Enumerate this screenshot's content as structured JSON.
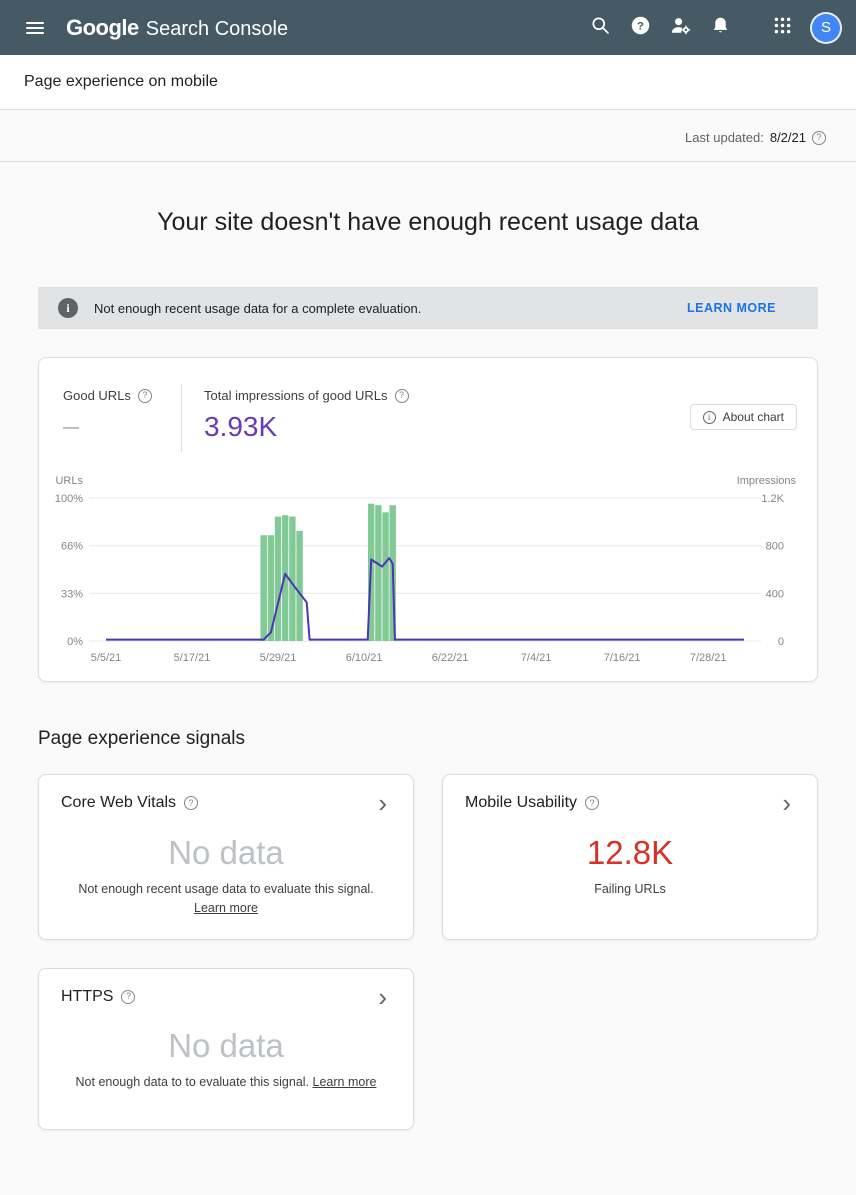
{
  "colors": {
    "header_bg": "#455a64",
    "accent_blue": "#1a73e8",
    "avatar_blue": "#4285f4",
    "value_purple": "#673ab7",
    "line_purple": "#4d35b5",
    "bar_green": "#81c995",
    "value_red": "#d93025",
    "nodata_gray": "#bdc1c6",
    "banner_bg": "#e1e3e4",
    "gridline": "#e8e8e8",
    "tick_text": "#80868b"
  },
  "glyphs": {
    "question": "?",
    "info": "i",
    "chevron": "›"
  },
  "header": {
    "logo_google": "Google",
    "logo_product": "Search Console",
    "avatar_letter": "S"
  },
  "subheader": {
    "title": "Page experience on mobile"
  },
  "meta": {
    "last_updated_label": "Last updated:",
    "last_updated_date": "8/2/21"
  },
  "main": {
    "headline": "Your site doesn't have enough recent usage data",
    "banner": {
      "text": "Not enough recent usage data for a complete evaluation.",
      "action": "LEARN MORE"
    }
  },
  "chart_card": {
    "good_urls_label": "Good URLs",
    "good_urls_value": "—",
    "impressions_label": "Total impressions of good URLs",
    "impressions_value": "3.93K",
    "about_chart": "About chart"
  },
  "chart_data": {
    "type": "bar+line",
    "x_total_days": 89,
    "x_ticks": [
      {
        "day": 0,
        "label": "5/5/21"
      },
      {
        "day": 12,
        "label": "5/17/21"
      },
      {
        "day": 24,
        "label": "5/29/21"
      },
      {
        "day": 36,
        "label": "6/10/21"
      },
      {
        "day": 48,
        "label": "6/22/21"
      },
      {
        "day": 60,
        "label": "7/4/21"
      },
      {
        "day": 72,
        "label": "7/16/21"
      },
      {
        "day": 84,
        "label": "7/28/21"
      }
    ],
    "left_axis": {
      "title": "URLs",
      "tick_labels": [
        "100%",
        "66%",
        "33%",
        "0%"
      ],
      "tick_values": [
        100,
        66.67,
        33.33,
        0
      ]
    },
    "right_axis": {
      "title": "Impressions",
      "tick_labels": [
        "1.2K",
        "800",
        "400",
        "0"
      ]
    },
    "bars_pct": [
      {
        "day": 22,
        "pct": 74
      },
      {
        "day": 23,
        "pct": 74
      },
      {
        "day": 24,
        "pct": 87
      },
      {
        "day": 25,
        "pct": 88
      },
      {
        "day": 26,
        "pct": 87
      },
      {
        "day": 27,
        "pct": 77
      },
      {
        "day": 37,
        "pct": 96
      },
      {
        "day": 38,
        "pct": 95
      },
      {
        "day": 39,
        "pct": 90
      },
      {
        "day": 40,
        "pct": 95
      }
    ],
    "line_pct": [
      {
        "day": 0,
        "pct": 1
      },
      {
        "day": 22,
        "pct": 1
      },
      {
        "day": 23,
        "pct": 6
      },
      {
        "day": 25,
        "pct": 47
      },
      {
        "day": 26,
        "pct": 40
      },
      {
        "day": 28,
        "pct": 27
      },
      {
        "day": 28.4,
        "pct": 1
      },
      {
        "day": 36.5,
        "pct": 1
      },
      {
        "day": 37,
        "pct": 57
      },
      {
        "day": 38.5,
        "pct": 52
      },
      {
        "day": 39.5,
        "pct": 58
      },
      {
        "day": 40,
        "pct": 54
      },
      {
        "day": 40.3,
        "pct": 1
      },
      {
        "day": 89,
        "pct": 1
      }
    ]
  },
  "signals": {
    "heading": "Page experience signals",
    "cards": [
      {
        "title": "Core Web Vitals",
        "value": "No data",
        "desc": "Not enough recent usage data to evaluate this signal.",
        "link": "Learn more"
      },
      {
        "title": "Mobile Usability",
        "value": "12.8K",
        "desc": "Failing URLs"
      },
      {
        "title": "HTTPS",
        "value": "No data",
        "desc": "Not enough data to to evaluate this signal.",
        "link": "Learn more"
      }
    ]
  }
}
